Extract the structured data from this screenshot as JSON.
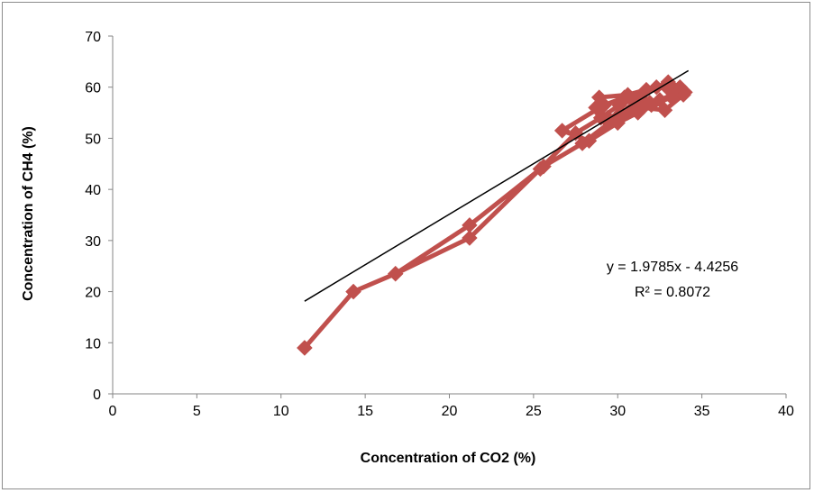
{
  "chart_data": {
    "type": "scatter",
    "title": "",
    "xlabel": "Concentration of CO2 (%)",
    "ylabel": "Concentration of CH4  (%)",
    "xlim": [
      0,
      40
    ],
    "ylim": [
      0,
      70
    ],
    "x_ticks": [
      0,
      5,
      10,
      15,
      20,
      25,
      30,
      35,
      40
    ],
    "y_ticks": [
      0,
      10,
      20,
      30,
      40,
      50,
      60,
      70
    ],
    "x_tick_labels": [
      "0",
      "5",
      "10",
      "15",
      "20",
      "25",
      "30",
      "35",
      "40"
    ],
    "y_tick_labels": [
      "0",
      "10",
      "20",
      "30",
      "40",
      "50",
      "60",
      "70"
    ],
    "grid": false,
    "legend": "none",
    "series_color": "#c0504d",
    "series": [
      {
        "marker": "diamond",
        "connected": true,
        "x": [
          11.4,
          14.3,
          16.8,
          21.2,
          25.4,
          27.5,
          29.0,
          30.1,
          31.3,
          32.3,
          33.0,
          33.7,
          34.0,
          33.2,
          32.0,
          30.9,
          30.2,
          29.4,
          28.7,
          28.9,
          30.6,
          31.7,
          32.9,
          33.6,
          32.5,
          31.2,
          30.0,
          28.3,
          26.7,
          29.2,
          30.4,
          31.5,
          32.8,
          33.9,
          31.9,
          30.6,
          29.5,
          27.9,
          25.6,
          21.2,
          16.8,
          14.3,
          11.4
        ],
        "y": [
          9.0,
          20.0,
          23.5,
          30.5,
          44.0,
          51.0,
          54.0,
          56.5,
          58.0,
          60.0,
          61.0,
          60.0,
          59.0,
          58.0,
          56.5,
          56.0,
          55.0,
          54.0,
          56.0,
          58.0,
          58.5,
          59.5,
          60.0,
          59.0,
          57.5,
          55.0,
          53.0,
          49.5,
          51.5,
          56.5,
          58.0,
          56.0,
          55.5,
          58.5,
          57.0,
          55.0,
          53.0,
          49.0,
          44.5,
          33.0,
          23.5,
          20.0,
          9.0
        ]
      }
    ],
    "trendline": {
      "color": "#000000",
      "x_start": 11.4,
      "x_end": 34.2,
      "slope": 1.9785,
      "intercept": -4.4256,
      "equation_label": "y = 1.9785x - 4.4256",
      "r2_label": "R² = 0.8072"
    }
  }
}
